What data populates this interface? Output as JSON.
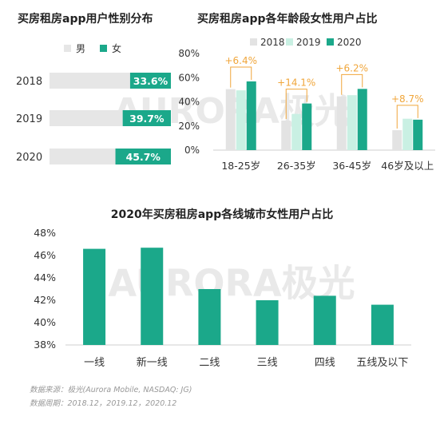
{
  "colors": {
    "male": "#e6e6e6",
    "female": "#1ba88a",
    "y2018": "#e3e3e3",
    "y2019": "#c9f0e3",
    "y2020": "#1ba88a",
    "delta": "#f0a63b",
    "axis": "#cfcfcf",
    "watermark": "#e9e9e9"
  },
  "watermark": "AURORA极光",
  "chart_data": [
    {
      "type": "bar",
      "orientation": "horizontal",
      "stacked": true,
      "title": "买房租房app用户性别分布",
      "legend": {
        "placement": "top",
        "entries": [
          "男",
          "女"
        ]
      },
      "categories": [
        "2018",
        "2019",
        "2020"
      ],
      "series": [
        {
          "name": "男",
          "values": [
            66.4,
            60.3,
            54.3
          ]
        },
        {
          "name": "女",
          "values": [
            33.6,
            39.7,
            45.7
          ]
        }
      ],
      "data_labels": [
        "33.6%",
        "39.7%",
        "45.7%"
      ]
    },
    {
      "type": "bar",
      "title": "买房租房app各年龄段女性用户占比",
      "legend": {
        "placement": "top",
        "entries": [
          "2018",
          "2019",
          "2020"
        ]
      },
      "categories": [
        "18-25岁",
        "26-35岁",
        "36-45岁",
        "46岁及以上"
      ],
      "series": [
        {
          "name": "2018",
          "values": [
            50.5,
            24.5,
            44.5,
            16.5
          ]
        },
        {
          "name": "2019",
          "values": [
            49.5,
            30.0,
            45.5,
            26.0
          ]
        },
        {
          "name": "2020",
          "values": [
            56.9,
            38.6,
            50.7,
            25.2
          ]
        }
      ],
      "annotations": [
        "+6.4%",
        "+14.1%",
        "+6.2%",
        "+8.7%"
      ],
      "yticks": [
        "0%",
        "20%",
        "40%",
        "60%",
        "80%"
      ],
      "ylim": [
        0,
        80
      ]
    },
    {
      "type": "bar",
      "title": "2020年买房租房app各线城市女性用户占比",
      "categories": [
        "一线",
        "新一线",
        "二线",
        "三线",
        "四线",
        "五线及以下"
      ],
      "values": [
        46.6,
        46.7,
        43.0,
        42.0,
        42.4,
        41.6
      ],
      "yticks": [
        "38%",
        "40%",
        "42%",
        "44%",
        "46%",
        "48%"
      ],
      "ylim": [
        38,
        48
      ]
    }
  ],
  "source": {
    "line1": "数据来源：极光(Aurora Mobile, NASDAQ: JG)",
    "line2": "数据周期：2018.12，2019.12，2020.12"
  }
}
